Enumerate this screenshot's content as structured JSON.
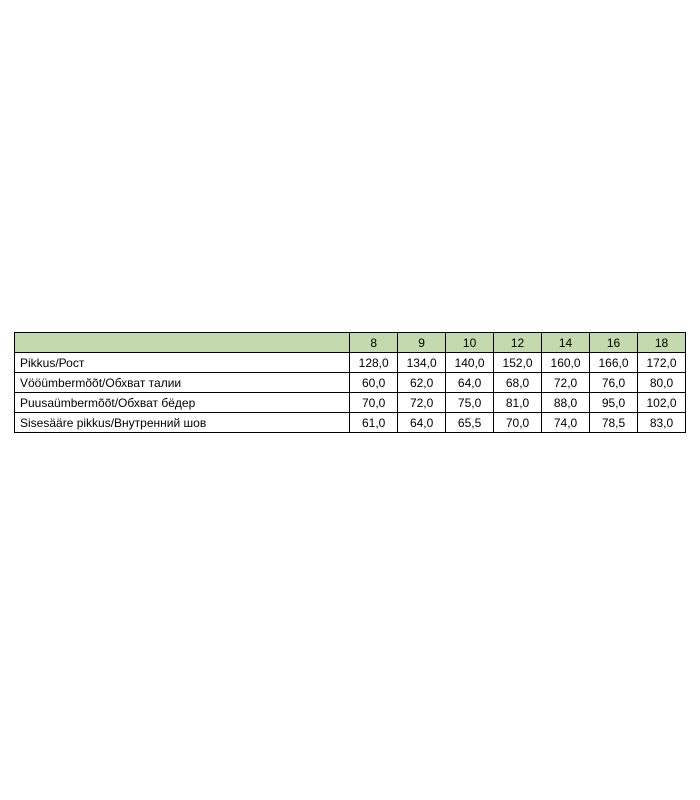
{
  "table": {
    "type": "table",
    "header_bg_color": "#c4d9ad",
    "border_color": "#000000",
    "cell_bg_color": "#ffffff",
    "font_size": 12,
    "label_column_width": 336,
    "value_column_width": 48,
    "columns": [
      "",
      "8",
      "9",
      "10",
      "12",
      "14",
      "16",
      "18"
    ],
    "rows": [
      {
        "label": "Pikkus/Рост",
        "values": [
          "128,0",
          "134,0",
          "140,0",
          "152,0",
          "160,0",
          "166,0",
          "172,0"
        ]
      },
      {
        "label": "Vööümbermõõt/Обхват талии",
        "values": [
          "60,0",
          "62,0",
          "64,0",
          "68,0",
          "72,0",
          "76,0",
          "80,0"
        ]
      },
      {
        "label": "Puusaümbermõõt/Обхват бёдер",
        "values": [
          "70,0",
          "72,0",
          "75,0",
          "81,0",
          "88,0",
          "95,0",
          "102,0"
        ]
      },
      {
        "label": "Sisesääre pikkus/Внутренний шов",
        "values": [
          "61,0",
          "64,0",
          "65,5",
          "70,0",
          "74,0",
          "78,5",
          "83,0"
        ]
      }
    ]
  }
}
